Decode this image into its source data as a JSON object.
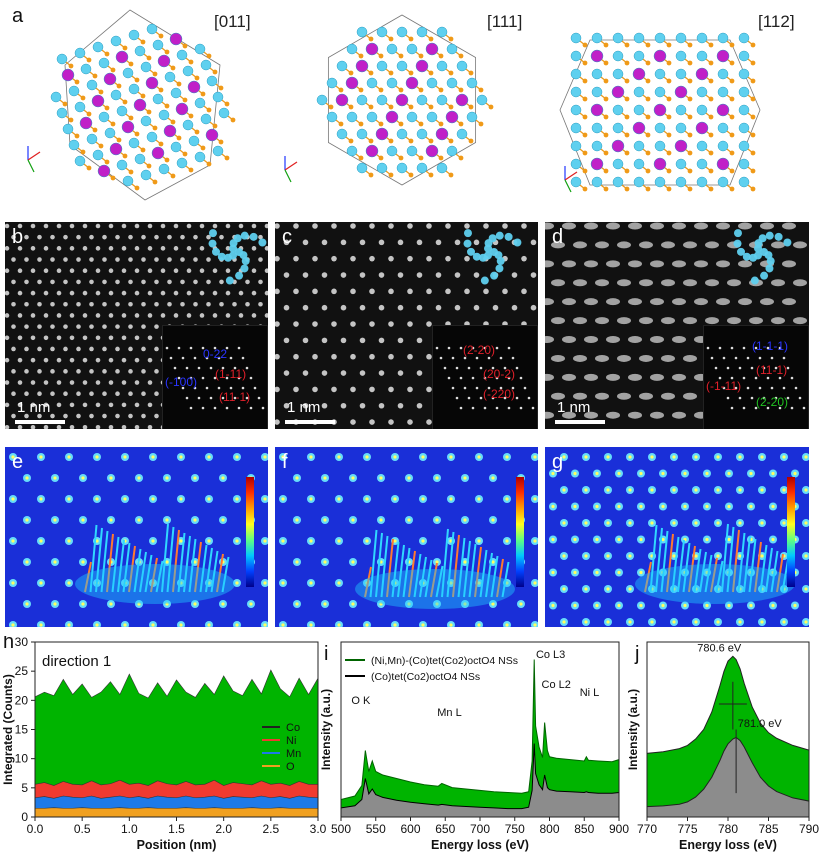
{
  "figure": {
    "row1": {
      "panel_letter": "a",
      "zones": [
        "[011]",
        "[111]",
        "[112]"
      ]
    },
    "row2": [
      {
        "letter": "b",
        "scale": "1 nm",
        "spots": [
          {
            "t": "0-22",
            "c": "#2a35ff"
          },
          {
            "t": "(-100)",
            "c": "#2a35ff"
          },
          {
            "t": "(1-11)",
            "c": "#e0202a"
          },
          {
            "t": "(11-1)",
            "c": "#e0202a"
          }
        ]
      },
      {
        "letter": "c",
        "scale": "1 nm",
        "spots": [
          {
            "t": "(2-20)",
            "c": "#e0202a"
          },
          {
            "t": "(20-2)",
            "c": "#e0202a"
          },
          {
            "t": "(-220)",
            "c": "#e0202a"
          }
        ]
      },
      {
        "letter": "d",
        "scale": "1 nm",
        "spots": [
          {
            "t": "(1-1-1)",
            "c": "#2a35ff"
          },
          {
            "t": "(-1-11)",
            "c": "#e0202a"
          },
          {
            "t": "(11-1)",
            "c": "#e0202a"
          },
          {
            "t": "(2-20)",
            "c": "#20c020"
          }
        ]
      }
    ],
    "row3_letters": [
      "e",
      "f",
      "g"
    ]
  },
  "colors": {
    "co_fill": "#00b400",
    "ni_fill": "#f03a30",
    "mn_fill": "#1e7ae8",
    "o_fill": "#f0a020",
    "grey_fill": "#8c8c8c",
    "green_line": "#006400",
    "black_line": "#000000"
  },
  "chart_data": [
    {
      "panel": "h",
      "type": "area",
      "annotation": "direction 1",
      "xlabel": "Position (nm)",
      "ylabel": "Integrated (Counts)",
      "xlim": [
        0.0,
        3.0
      ],
      "ylim": [
        0,
        30
      ],
      "xticks": [
        "0.0",
        "0.5",
        "1.0",
        "1.5",
        "2.0",
        "2.5",
        "3.0"
      ],
      "yticks": [
        "0",
        "5",
        "10",
        "15",
        "20",
        "25",
        "30"
      ],
      "legend": [
        "Co",
        "Ni",
        "Mn",
        "O"
      ],
      "legend_position": "center-right",
      "x": [
        0.0,
        0.1,
        0.2,
        0.3,
        0.4,
        0.5,
        0.6,
        0.7,
        0.8,
        0.9,
        1.0,
        1.1,
        1.2,
        1.3,
        1.4,
        1.5,
        1.6,
        1.7,
        1.8,
        1.9,
        2.0,
        2.1,
        2.2,
        2.3,
        2.4,
        2.5,
        2.6,
        2.7,
        2.8,
        2.9,
        3.0
      ],
      "series": [
        {
          "name": "O",
          "values": [
            1.5,
            1.5,
            1.6,
            1.5,
            1.5,
            1.6,
            1.5,
            1.5,
            1.5,
            1.6,
            1.5,
            1.5,
            1.6,
            1.5,
            1.5,
            1.5,
            1.6,
            1.5,
            1.5,
            1.6,
            1.5,
            1.5,
            1.5,
            1.6,
            1.5,
            1.5,
            1.6,
            1.5,
            1.5,
            1.5,
            1.5
          ]
        },
        {
          "name": "Mn",
          "values": [
            3.3,
            3.5,
            3.2,
            3.6,
            3.4,
            3.3,
            3.6,
            3.2,
            3.4,
            3.6,
            3.3,
            3.5,
            3.2,
            3.6,
            3.4,
            3.3,
            3.6,
            3.3,
            3.4,
            3.6,
            3.2,
            3.5,
            3.4,
            3.3,
            3.6,
            3.3,
            3.5,
            3.2,
            3.6,
            3.4,
            3.3
          ]
        },
        {
          "name": "Ni",
          "values": [
            5.6,
            5.9,
            5.4,
            6.1,
            5.6,
            5.5,
            6.2,
            5.5,
            5.7,
            6.3,
            5.6,
            5.8,
            5.4,
            6.2,
            5.7,
            5.5,
            6.1,
            5.5,
            5.6,
            6.3,
            5.4,
            5.9,
            5.7,
            5.5,
            6.2,
            5.6,
            5.8,
            5.4,
            6.1,
            5.6,
            5.6
          ]
        },
        {
          "name": "Co",
          "values": [
            20.6,
            21.4,
            20.8,
            23.6,
            21.0,
            22.8,
            20.5,
            21.4,
            23.2,
            21.0,
            24.5,
            21.2,
            20.4,
            23.0,
            20.7,
            23.5,
            21.4,
            20.5,
            22.9,
            21.0,
            24.2,
            21.6,
            20.8,
            23.6,
            21.1,
            25.2,
            22.0,
            20.6,
            23.8,
            21.0,
            23.8
          ]
        }
      ]
    },
    {
      "panel": "i",
      "type": "line",
      "xlabel": "Energy loss (eV)",
      "ylabel": "Intensity (a.u.)",
      "xlim": [
        500,
        900
      ],
      "xticks": [
        "500",
        "550",
        "600",
        "650",
        "700",
        "750",
        "800",
        "850",
        "900"
      ],
      "legend": [
        {
          "text": "(Ni,Mn)-(Co)tet(Co2)octO4 NSs",
          "color": "#006400"
        },
        {
          "text": "(Co)tet(Co2)octO4 NSs",
          "color": "#000000"
        }
      ],
      "annotations": [
        "O K",
        "Mn L",
        "Co L3",
        "Co L2",
        "Ni L"
      ],
      "x": [
        500,
        520,
        530,
        535,
        540,
        545,
        550,
        560,
        580,
        600,
        620,
        640,
        645,
        660,
        680,
        700,
        720,
        740,
        760,
        770,
        775,
        778,
        780,
        785,
        790,
        793,
        797,
        800,
        810,
        830,
        850,
        853,
        856,
        870,
        890,
        900
      ],
      "series": [
        {
          "name": "(Ni,Mn)-(Co)tet(Co2)octO4 NSs",
          "values": [
            2.5,
            3.0,
            4.5,
            9.5,
            6.5,
            8.0,
            6.5,
            6.0,
            5.5,
            5.0,
            4.6,
            4.4,
            4.8,
            4.2,
            4.0,
            3.8,
            3.6,
            3.5,
            3.4,
            3.6,
            8.0,
            22.5,
            13.0,
            10.0,
            8.5,
            13.5,
            9.5,
            8.6,
            8.4,
            8.2,
            8.0,
            8.6,
            8.1,
            8.0,
            7.9,
            8.2
          ]
        },
        {
          "name": "(Co)tet(Co2)octO4 NSs",
          "values": [
            1.3,
            1.6,
            2.5,
            5.5,
            3.3,
            4.0,
            3.2,
            2.8,
            2.4,
            2.1,
            1.9,
            1.7,
            1.8,
            1.6,
            1.5,
            1.4,
            1.3,
            1.2,
            1.2,
            1.4,
            3.8,
            10.5,
            6.2,
            4.6,
            3.9,
            6.0,
            4.2,
            3.9,
            3.7,
            3.6,
            3.5,
            3.6,
            3.5,
            3.4,
            3.4,
            3.5
          ]
        }
      ]
    },
    {
      "panel": "j",
      "type": "area",
      "xlabel": "Energy loss (eV)",
      "ylabel": "Intensity (a.u.)",
      "xlim": [
        770,
        790
      ],
      "xticks": [
        "770",
        "775",
        "780",
        "785",
        "790"
      ],
      "annotations": [
        "780.6 eV",
        "781.0 eV"
      ],
      "peaks": [
        780.6,
        781.0
      ],
      "x": [
        770,
        772,
        774,
        775,
        776,
        777,
        778,
        779,
        779.5,
        780,
        780.6,
        781,
        781.5,
        782,
        783,
        784,
        785,
        786,
        788,
        790
      ],
      "series": [
        {
          "name": "green",
          "values": [
            8.0,
            8.2,
            8.6,
            9.0,
            9.8,
            11.0,
            13.2,
            16.5,
            18.3,
            19.6,
            20.2,
            19.8,
            18.6,
            16.8,
            13.8,
            11.8,
            10.6,
            9.9,
            9.0,
            8.4
          ]
        },
        {
          "name": "grey",
          "values": [
            1.3,
            1.4,
            1.6,
            1.9,
            2.5,
            3.5,
            5.0,
            7.1,
            8.3,
            9.2,
            9.8,
            10.0,
            9.6,
            8.8,
            6.8,
            5.0,
            3.9,
            3.2,
            2.4,
            2.0
          ]
        }
      ]
    }
  ]
}
